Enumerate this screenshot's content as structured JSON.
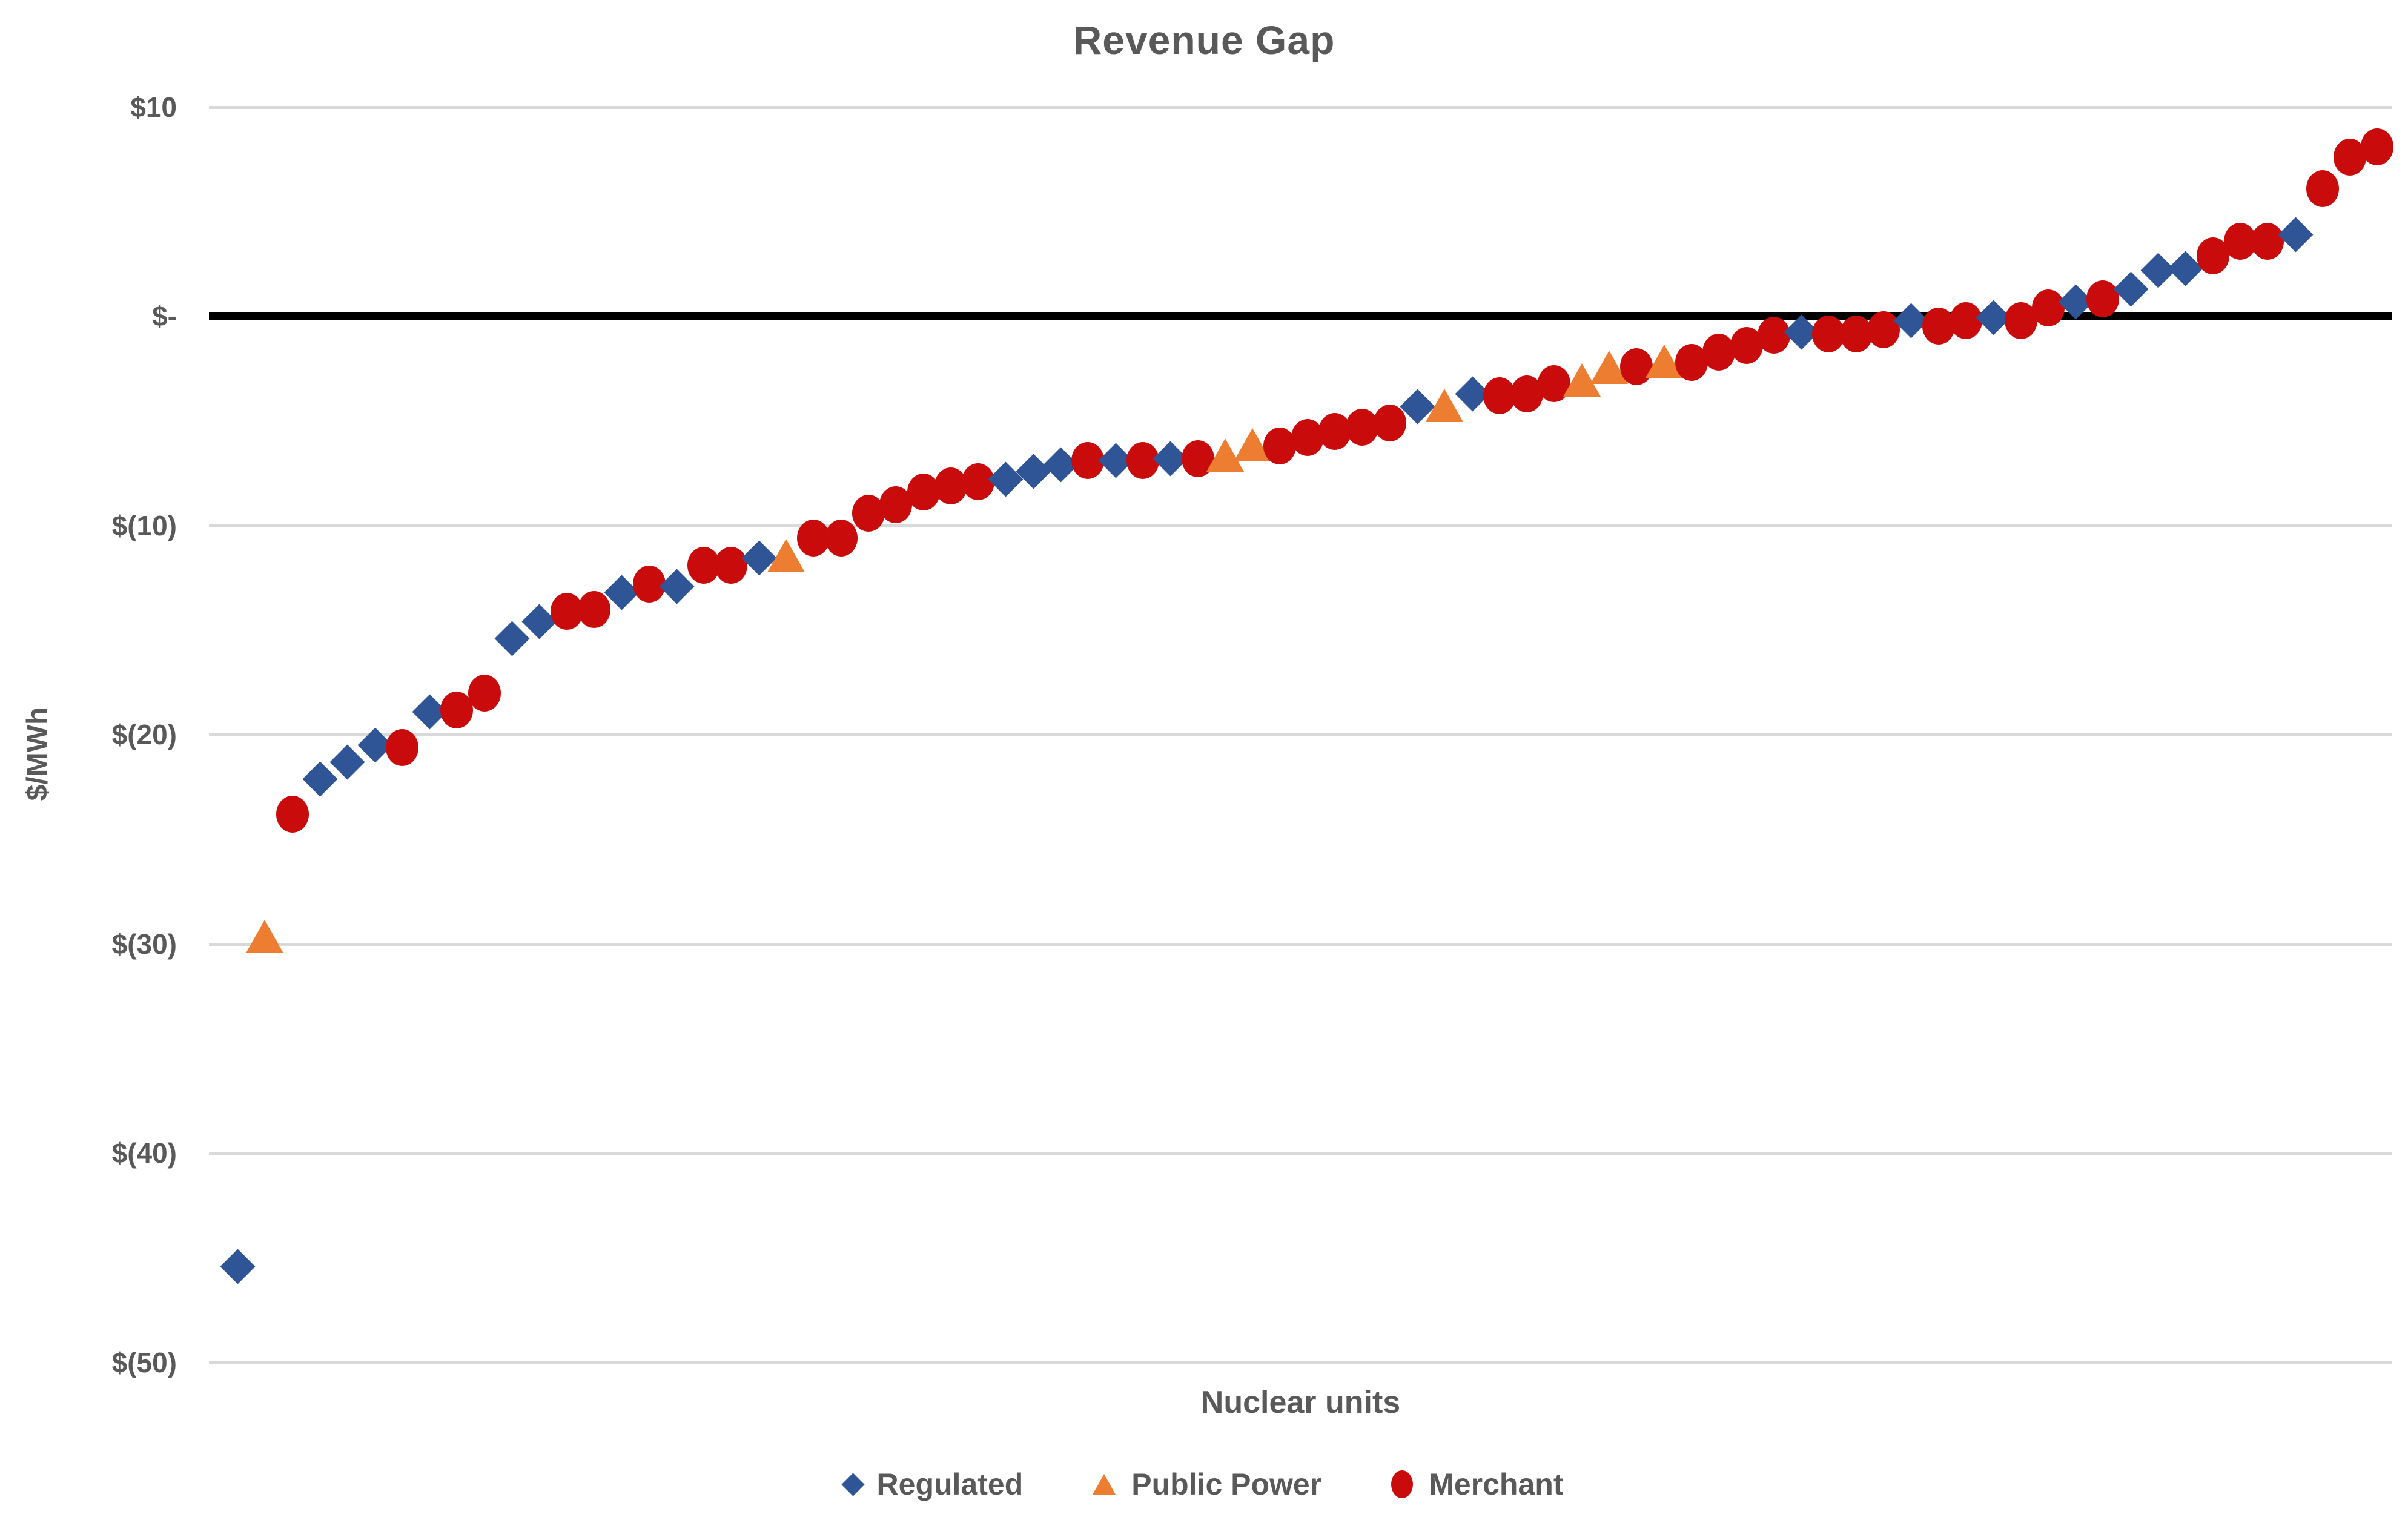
{
  "chart_data": {
    "type": "scatter",
    "title": "Revenue Gap",
    "xlabel": "Nuclear units",
    "ylabel": "$/MWh",
    "ylim": [
      -50,
      10
    ],
    "y_tick_interval": 10,
    "grid": "horizontal-only",
    "legend_position": "bottom",
    "background": "#FFFFFF",
    "y_ticks": [
      {
        "value": 10,
        "label": "$10"
      },
      {
        "value": 0,
        "label": "$-"
      },
      {
        "value": -10,
        "label": "$(10)"
      },
      {
        "value": -20,
        "label": "$(20)"
      },
      {
        "value": -30,
        "label": "$(30)"
      },
      {
        "value": -40,
        "label": "$(40)"
      },
      {
        "value": -50,
        "label": "$(50)"
      }
    ],
    "zero_line": {
      "value": 0,
      "color": "#000000",
      "bold": true
    },
    "series": [
      {
        "key": "R",
        "name": "Regulated",
        "marker": "diamond",
        "color": "#2F5597"
      },
      {
        "key": "P",
        "name": "Public Power",
        "marker": "triangle",
        "color": "#ED7D31"
      },
      {
        "key": "M",
        "name": "Merchant",
        "marker": "circle",
        "color": "#C90B0B"
      }
    ],
    "x_units": "individual nuclear units, sorted ascending by revenue gap",
    "points": [
      [
        "R",
        -45.4
      ],
      [
        "P",
        -29.7
      ],
      [
        "M",
        -23.8
      ],
      [
        "R",
        -22.1
      ],
      [
        "R",
        -21.3
      ],
      [
        "R",
        -20.5
      ],
      [
        "M",
        -20.6
      ],
      [
        "R",
        -18.9
      ],
      [
        "M",
        -18.8
      ],
      [
        "M",
        -18.0
      ],
      [
        "R",
        -15.4
      ],
      [
        "R",
        -14.6
      ],
      [
        "M",
        -14.1
      ],
      [
        "M",
        -14.0
      ],
      [
        "R",
        -13.2
      ],
      [
        "M",
        -12.8
      ],
      [
        "R",
        -12.9
      ],
      [
        "M",
        -11.9
      ],
      [
        "M",
        -11.9
      ],
      [
        "R",
        -11.55
      ],
      [
        "P",
        -11.5
      ],
      [
        "M",
        -10.6
      ],
      [
        "M",
        -10.6
      ],
      [
        "M",
        -9.4
      ],
      [
        "M",
        -9.0
      ],
      [
        "M",
        -8.4
      ],
      [
        "M",
        -8.1
      ],
      [
        "M",
        -7.9
      ],
      [
        "R",
        -7.8
      ],
      [
        "R",
        -7.4
      ],
      [
        "R",
        -7.1
      ],
      [
        "M",
        -6.9
      ],
      [
        "R",
        -6.9
      ],
      [
        "M",
        -6.9
      ],
      [
        "R",
        -6.8
      ],
      [
        "M",
        -6.8
      ],
      [
        "P",
        -6.7
      ],
      [
        "P",
        -6.2
      ],
      [
        "M",
        -6.2
      ],
      [
        "M",
        -5.8
      ],
      [
        "M",
        -5.5
      ],
      [
        "M",
        -5.3
      ],
      [
        "M",
        -5.1
      ],
      [
        "R",
        -4.3
      ],
      [
        "P",
        -4.3
      ],
      [
        "R",
        -3.7
      ],
      [
        "M",
        -3.8
      ],
      [
        "M",
        -3.7
      ],
      [
        "M",
        -3.2
      ],
      [
        "P",
        -3.1
      ],
      [
        "P",
        -2.5
      ],
      [
        "M",
        -2.4
      ],
      [
        "P",
        -2.2
      ],
      [
        "M",
        -2.2
      ],
      [
        "M",
        -1.7
      ],
      [
        "M",
        -1.4
      ],
      [
        "M",
        -0.9
      ],
      [
        "R",
        -0.75
      ],
      [
        "M",
        -0.85
      ],
      [
        "M",
        -0.85
      ],
      [
        "M",
        -0.65
      ],
      [
        "R",
        -0.2
      ],
      [
        "M",
        -0.45
      ],
      [
        "M",
        -0.2
      ],
      [
        "R",
        -0.05
      ],
      [
        "M",
        -0.2
      ],
      [
        "M",
        0.4
      ],
      [
        "R",
        0.7
      ],
      [
        "M",
        0.85
      ],
      [
        "R",
        1.3
      ],
      [
        "R",
        2.2
      ],
      [
        "R",
        2.3
      ],
      [
        "M",
        2.9
      ],
      [
        "M",
        3.6
      ],
      [
        "M",
        3.6
      ],
      [
        "R",
        3.9
      ],
      [
        "M",
        6.1
      ],
      [
        "M",
        7.6
      ],
      [
        "M",
        8.1
      ]
    ]
  },
  "styles": {
    "text_color": "#595959",
    "gridline_color": "#D9D9D9",
    "background": "#FFFFFF"
  }
}
